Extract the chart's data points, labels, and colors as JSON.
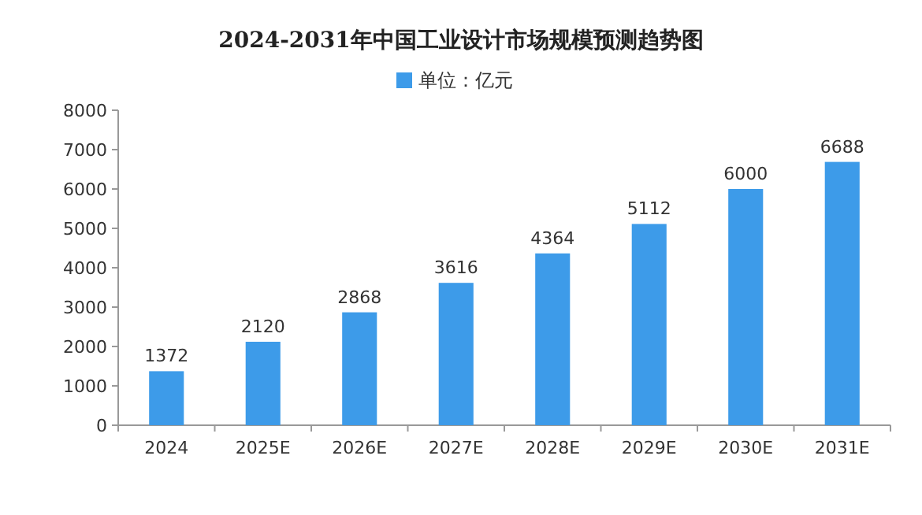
{
  "chart_data": {
    "type": "bar",
    "title": "2024-2031年中国工业设计市场规模预测趋势图",
    "categories": [
      "2024",
      "2025E",
      "2026E",
      "2027E",
      "2028E",
      "2029E",
      "2030E",
      "2031E"
    ],
    "series": [
      {
        "name": "单位：亿元",
        "color": "#3d9be9",
        "values": [
          1372,
          2120,
          2868,
          3616,
          4364,
          5112,
          6000,
          6688
        ]
      }
    ],
    "ylim": [
      0,
      8000
    ],
    "yticks": [
      0,
      1000,
      2000,
      3000,
      4000,
      5000,
      6000,
      7000,
      8000
    ],
    "data_labels": true,
    "legend": "top",
    "grid": false
  }
}
